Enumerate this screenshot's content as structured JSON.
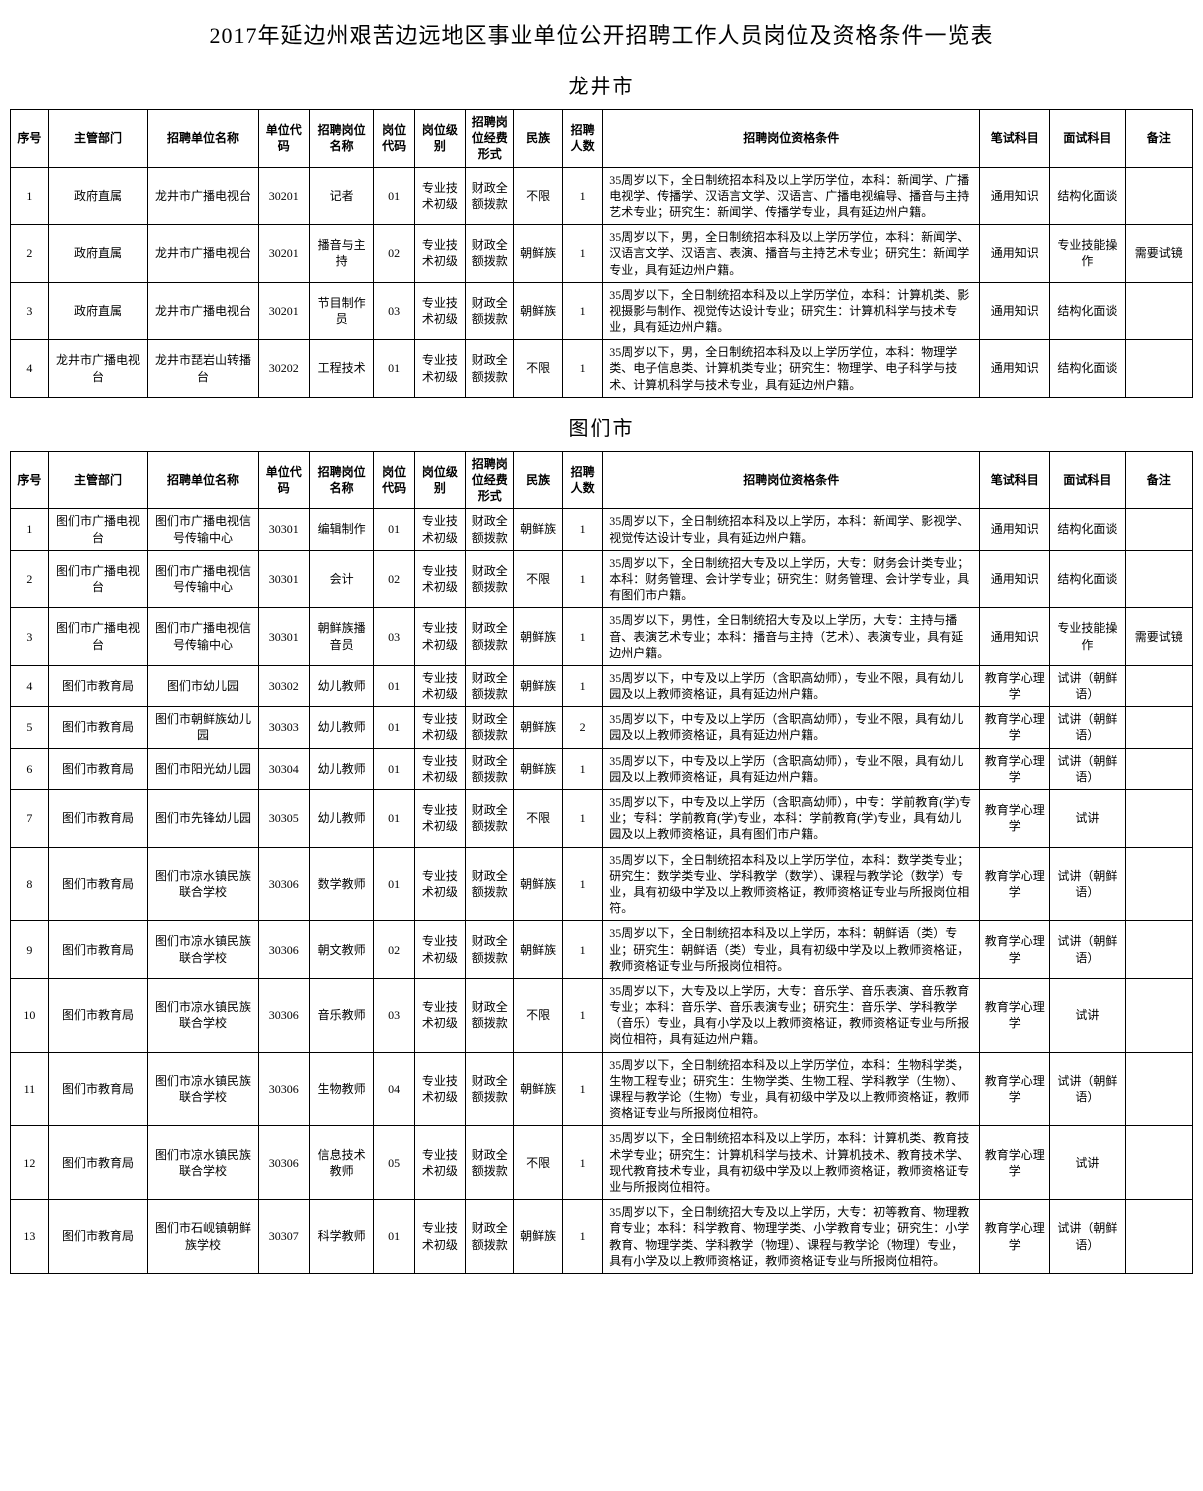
{
  "main_title": "2017年延边州艰苦边远地区事业单位公开招聘工作人员岗位及资格条件一览表",
  "sections": [
    {
      "city": "龙井市",
      "headers": [
        "序号",
        "主管部门",
        "招聘单位名称",
        "单位代码",
        "招聘岗位名称",
        "岗位代码",
        "岗位级别",
        "招聘岗位经费形式",
        "民族",
        "招聘人数",
        "招聘岗位资格条件",
        "笔试科目",
        "面试科目",
        "备注"
      ],
      "rows": [
        {
          "seq": "1",
          "dept": "政府直属",
          "unit": "龙井市广播电视台",
          "unitcode": "30201",
          "posname": "记者",
          "poscode": "01",
          "level": "专业技术初级",
          "fund": "财政全额拨款",
          "ethnic": "不限",
          "num": "1",
          "req": "35周岁以下，全日制统招本科及以上学历学位，本科：新闻学、广播电视学、传播学、汉语言文学、汉语言、广播电视编导、播音与主持艺术专业；研究生：新闻学、传播学专业，具有延边州户籍。",
          "written": "通用知识",
          "interview": "结构化面谈",
          "remark": ""
        },
        {
          "seq": "2",
          "dept": "政府直属",
          "unit": "龙井市广播电视台",
          "unitcode": "30201",
          "posname": "播音与主持",
          "poscode": "02",
          "level": "专业技术初级",
          "fund": "财政全额拨款",
          "ethnic": "朝鲜族",
          "num": "1",
          "req": "35周岁以下，男，全日制统招本科及以上学历学位，本科：新闻学、汉语言文学、汉语言、表演、播音与主持艺术专业；研究生：新闻学专业，具有延边州户籍。",
          "written": "通用知识",
          "interview": "专业技能操作",
          "remark": "需要试镜"
        },
        {
          "seq": "3",
          "dept": "政府直属",
          "unit": "龙井市广播电视台",
          "unitcode": "30201",
          "posname": "节目制作员",
          "poscode": "03",
          "level": "专业技术初级",
          "fund": "财政全额拨款",
          "ethnic": "朝鲜族",
          "num": "1",
          "req": "35周岁以下，全日制统招本科及以上学历学位，本科：计算机类、影视摄影与制作、视觉传达设计专业；研究生：计算机科学与技术专业，具有延边州户籍。",
          "written": "通用知识",
          "interview": "结构化面谈",
          "remark": ""
        },
        {
          "seq": "4",
          "dept": "龙井市广播电视台",
          "unit": "龙井市琵岩山转播台",
          "unitcode": "30202",
          "posname": "工程技术",
          "poscode": "01",
          "level": "专业技术初级",
          "fund": "财政全额拨款",
          "ethnic": "不限",
          "num": "1",
          "req": "35周岁以下，男，全日制统招本科及以上学历学位，本科：物理学类、电子信息类、计算机类专业；研究生：物理学、电子科学与技术、计算机科学与技术专业，具有延边州户籍。",
          "written": "通用知识",
          "interview": "结构化面谈",
          "remark": ""
        }
      ]
    },
    {
      "city": "图们市",
      "headers": [
        "序号",
        "主管部门",
        "招聘单位名称",
        "单位代码",
        "招聘岗位名称",
        "岗位代码",
        "岗位级别",
        "招聘岗位经费形式",
        "民族",
        "招聘人数",
        "招聘岗位资格条件",
        "笔试科目",
        "面试科目",
        "备注"
      ],
      "rows": [
        {
          "seq": "1",
          "dept": "图们市广播电视台",
          "unit": "图们市广播电视信号传输中心",
          "unitcode": "30301",
          "posname": "编辑制作",
          "poscode": "01",
          "level": "专业技术初级",
          "fund": "财政全额拨款",
          "ethnic": "朝鲜族",
          "num": "1",
          "req": "35周岁以下，全日制统招本科及以上学历，本科：新闻学、影视学、视觉传达设计专业，具有延边州户籍。",
          "written": "通用知识",
          "interview": "结构化面谈",
          "remark": ""
        },
        {
          "seq": "2",
          "dept": "图们市广播电视台",
          "unit": "图们市广播电视信号传输中心",
          "unitcode": "30301",
          "posname": "会计",
          "poscode": "02",
          "level": "专业技术初级",
          "fund": "财政全额拨款",
          "ethnic": "不限",
          "num": "1",
          "req": "35周岁以下，全日制统招大专及以上学历，大专：财务会计类专业；本科：财务管理、会计学专业；研究生：财务管理、会计学专业，具有图们市户籍。",
          "written": "通用知识",
          "interview": "结构化面谈",
          "remark": ""
        },
        {
          "seq": "3",
          "dept": "图们市广播电视台",
          "unit": "图们市广播电视信号传输中心",
          "unitcode": "30301",
          "posname": "朝鲜族播音员",
          "poscode": "03",
          "level": "专业技术初级",
          "fund": "财政全额拨款",
          "ethnic": "朝鲜族",
          "num": "1",
          "req": "35周岁以下，男性，全日制统招大专及以上学历，大专：主持与播音、表演艺术专业；本科：播音与主持（艺术）、表演专业，具有延边州户籍。",
          "written": "通用知识",
          "interview": "专业技能操作",
          "remark": "需要试镜"
        },
        {
          "seq": "4",
          "dept": "图们市教育局",
          "unit": "图们市幼儿园",
          "unitcode": "30302",
          "posname": "幼儿教师",
          "poscode": "01",
          "level": "专业技术初级",
          "fund": "财政全额拨款",
          "ethnic": "朝鲜族",
          "num": "1",
          "req": "35周岁以下，中专及以上学历（含职高幼师），专业不限，具有幼儿园及以上教师资格证，具有延边州户籍。",
          "written": "教育学心理学",
          "interview": "试讲（朝鲜语）",
          "remark": ""
        },
        {
          "seq": "5",
          "dept": "图们市教育局",
          "unit": "图们市朝鲜族幼儿园",
          "unitcode": "30303",
          "posname": "幼儿教师",
          "poscode": "01",
          "level": "专业技术初级",
          "fund": "财政全额拨款",
          "ethnic": "朝鲜族",
          "num": "2",
          "req": "35周岁以下，中专及以上学历（含职高幼师），专业不限，具有幼儿园及以上教师资格证，具有延边州户籍。",
          "written": "教育学心理学",
          "interview": "试讲（朝鲜语）",
          "remark": ""
        },
        {
          "seq": "6",
          "dept": "图们市教育局",
          "unit": "图们市阳光幼儿园",
          "unitcode": "30304",
          "posname": "幼儿教师",
          "poscode": "01",
          "level": "专业技术初级",
          "fund": "财政全额拨款",
          "ethnic": "朝鲜族",
          "num": "1",
          "req": "35周岁以下，中专及以上学历（含职高幼师），专业不限，具有幼儿园及以上教师资格证，具有延边州户籍。",
          "written": "教育学心理学",
          "interview": "试讲（朝鲜语）",
          "remark": ""
        },
        {
          "seq": "7",
          "dept": "图们市教育局",
          "unit": "图们市先锋幼儿园",
          "unitcode": "30305",
          "posname": "幼儿教师",
          "poscode": "01",
          "level": "专业技术初级",
          "fund": "财政全额拨款",
          "ethnic": "不限",
          "num": "1",
          "req": "35周岁以下，中专及以上学历（含职高幼师），中专：学前教育(学)专业；专科：学前教育(学)专业，本科：学前教育(学)专业，具有幼儿园及以上教师资格证，具有图们市户籍。",
          "written": "教育学心理学",
          "interview": "试讲",
          "remark": ""
        },
        {
          "seq": "8",
          "dept": "图们市教育局",
          "unit": "图们市凉水镇民族联合学校",
          "unitcode": "30306",
          "posname": "数学教师",
          "poscode": "01",
          "level": "专业技术初级",
          "fund": "财政全额拨款",
          "ethnic": "朝鲜族",
          "num": "1",
          "req": "35周岁以下，全日制统招本科及以上学历学位，本科：数学类专业；研究生：数学类专业、学科教学（数学）、课程与教学论（数学）专业，具有初级中学及以上教师资格证，教师资格证专业与所报岗位相符。",
          "written": "教育学心理学",
          "interview": "试讲（朝鲜语）",
          "remark": ""
        },
        {
          "seq": "9",
          "dept": "图们市教育局",
          "unit": "图们市凉水镇民族联合学校",
          "unitcode": "30306",
          "posname": "朝文教师",
          "poscode": "02",
          "level": "专业技术初级",
          "fund": "财政全额拨款",
          "ethnic": "朝鲜族",
          "num": "1",
          "req": "35周岁以下，全日制统招本科及以上学历，本科：朝鲜语（类）专业；研究生：朝鲜语（类）专业，具有初级中学及以上教师资格证，教师资格证专业与所报岗位相符。",
          "written": "教育学心理学",
          "interview": "试讲（朝鲜语）",
          "remark": ""
        },
        {
          "seq": "10",
          "dept": "图们市教育局",
          "unit": "图们市凉水镇民族联合学校",
          "unitcode": "30306",
          "posname": "音乐教师",
          "poscode": "03",
          "level": "专业技术初级",
          "fund": "财政全额拨款",
          "ethnic": "不限",
          "num": "1",
          "req": "35周岁以下，大专及以上学历，大专：音乐学、音乐表演、音乐教育专业；本科：音乐学、音乐表演专业；研究生：音乐学、学科教学（音乐）专业，具有小学及以上教师资格证，教师资格证专业与所报岗位相符，具有延边州户籍。",
          "written": "教育学心理学",
          "interview": "试讲",
          "remark": ""
        },
        {
          "seq": "11",
          "dept": "图们市教育局",
          "unit": "图们市凉水镇民族联合学校",
          "unitcode": "30306",
          "posname": "生物教师",
          "poscode": "04",
          "level": "专业技术初级",
          "fund": "财政全额拨款",
          "ethnic": "朝鲜族",
          "num": "1",
          "req": "35周岁以下，全日制统招本科及以上学历学位，本科：生物科学类，生物工程专业；研究生：生物学类、生物工程、学科教学（生物）、课程与教学论（生物）专业，具有初级中学及以上教师资格证，教师资格证专业与所报岗位相符。",
          "written": "教育学心理学",
          "interview": "试讲（朝鲜语）",
          "remark": ""
        },
        {
          "seq": "12",
          "dept": "图们市教育局",
          "unit": "图们市凉水镇民族联合学校",
          "unitcode": "30306",
          "posname": "信息技术教师",
          "poscode": "05",
          "level": "专业技术初级",
          "fund": "财政全额拨款",
          "ethnic": "不限",
          "num": "1",
          "req": "35周岁以下，全日制统招本科及以上学历，本科：计算机类、教育技术学专业；研究生：计算机科学与技术、计算机技术、教育技术学、现代教育技术专业，具有初级中学及以上教师资格证，教师资格证专业与所报岗位相符。",
          "written": "教育学心理学",
          "interview": "试讲",
          "remark": ""
        },
        {
          "seq": "13",
          "dept": "图们市教育局",
          "unit": "图们市石岘镇朝鲜族学校",
          "unitcode": "30307",
          "posname": "科学教师",
          "poscode": "01",
          "level": "专业技术初级",
          "fund": "财政全额拨款",
          "ethnic": "朝鲜族",
          "num": "1",
          "req": "35周岁以下，全日制统招大专及以上学历，大专：初等教育、物理教育专业；本科：科学教育、物理学类、小学教育专业；研究生：小学教育、物理学类、学科教学（物理）、课程与教学论（物理）专业，具有小学及以上教师资格证，教师资格证专业与所报岗位相符。",
          "written": "教育学心理学",
          "interview": "试讲（朝鲜语）",
          "remark": ""
        }
      ]
    }
  ],
  "col_classes": [
    "col-seq",
    "col-dept",
    "col-unit",
    "col-unitcode",
    "col-posname",
    "col-poscode",
    "col-level",
    "col-fund",
    "col-ethnic",
    "col-num",
    "col-req",
    "col-written",
    "col-interview",
    "col-remark"
  ]
}
